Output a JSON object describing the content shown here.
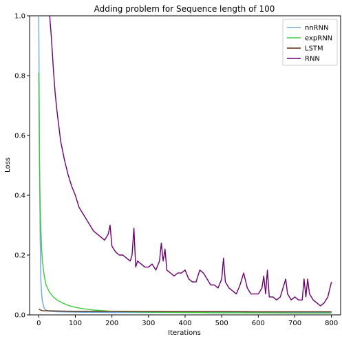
{
  "chart_data": {
    "type": "line",
    "title": "Adding problem for Sequence length of 100",
    "xlabel": "Iterations",
    "ylabel": "Loss",
    "xlim": [
      -25,
      825
    ],
    "ylim": [
      0,
      1.0
    ],
    "xticks": [
      0,
      100,
      200,
      300,
      400,
      500,
      600,
      700,
      800
    ],
    "yticks": [
      0.0,
      0.2,
      0.4,
      0.6,
      0.8,
      1.0
    ],
    "xtick_labels": [
      "0",
      "100",
      "200",
      "300",
      "400",
      "500",
      "600",
      "700",
      "800"
    ],
    "ytick_labels": [
      "0.0",
      "0.2",
      "0.4",
      "0.6",
      "0.8",
      "1.0"
    ],
    "grid": false,
    "legend_position": "top-right",
    "series": [
      {
        "name": "nnRNN",
        "color": "#6fa8dc",
        "x": [
          0,
          1,
          2,
          3,
          4,
          5,
          6,
          8,
          10,
          15,
          20,
          30,
          50,
          100,
          200,
          400,
          600,
          800
        ],
        "y": [
          1.0,
          0.8,
          0.55,
          0.38,
          0.25,
          0.17,
          0.11,
          0.07,
          0.045,
          0.022,
          0.016,
          0.012,
          0.01,
          0.009,
          0.008,
          0.008,
          0.008,
          0.008
        ]
      },
      {
        "name": "expRNN",
        "color": "#3ec73e",
        "x": [
          0,
          2,
          4,
          6,
          8,
          10,
          15,
          20,
          30,
          40,
          50,
          60,
          70,
          80,
          100,
          120,
          150,
          200,
          250,
          300,
          400,
          500,
          600,
          700,
          800
        ],
        "y": [
          0.81,
          0.5,
          0.36,
          0.28,
          0.22,
          0.18,
          0.13,
          0.1,
          0.075,
          0.06,
          0.05,
          0.043,
          0.037,
          0.032,
          0.025,
          0.021,
          0.016,
          0.012,
          0.01,
          0.009,
          0.008,
          0.007,
          0.007,
          0.006,
          0.006
        ]
      },
      {
        "name": "LSTM",
        "color": "#5a2a0a",
        "x": [
          0,
          5,
          10,
          50,
          100,
          200,
          300,
          400,
          500,
          600,
          700,
          800
        ],
        "y": [
          0.02,
          0.016,
          0.014,
          0.013,
          0.012,
          0.012,
          0.011,
          0.011,
          0.011,
          0.01,
          0.01,
          0.01
        ]
      },
      {
        "name": "RNN",
        "color": "#6b0071",
        "x": [
          30,
          35,
          40,
          45,
          50,
          60,
          70,
          80,
          90,
          100,
          110,
          120,
          130,
          140,
          150,
          160,
          170,
          180,
          190,
          195,
          200,
          210,
          220,
          230,
          240,
          250,
          255,
          260,
          265,
          270,
          280,
          290,
          300,
          310,
          320,
          330,
          335,
          340,
          345,
          350,
          360,
          370,
          380,
          390,
          400,
          410,
          420,
          430,
          440,
          450,
          460,
          470,
          480,
          490,
          500,
          505,
          510,
          520,
          530,
          540,
          550,
          560,
          570,
          580,
          590,
          600,
          610,
          615,
          620,
          625,
          630,
          640,
          650,
          660,
          670,
          675,
          680,
          690,
          700,
          710,
          720,
          725,
          730,
          735,
          740,
          750,
          760,
          770,
          780,
          790,
          800
        ],
        "y": [
          1.0,
          0.92,
          0.82,
          0.74,
          0.68,
          0.58,
          0.52,
          0.47,
          0.43,
          0.4,
          0.36,
          0.34,
          0.32,
          0.3,
          0.28,
          0.27,
          0.26,
          0.25,
          0.27,
          0.3,
          0.23,
          0.21,
          0.2,
          0.2,
          0.19,
          0.18,
          0.2,
          0.29,
          0.16,
          0.18,
          0.17,
          0.16,
          0.16,
          0.17,
          0.15,
          0.18,
          0.24,
          0.18,
          0.22,
          0.15,
          0.14,
          0.13,
          0.14,
          0.14,
          0.15,
          0.12,
          0.11,
          0.11,
          0.15,
          0.14,
          0.12,
          0.1,
          0.1,
          0.09,
          0.12,
          0.19,
          0.11,
          0.09,
          0.08,
          0.07,
          0.1,
          0.14,
          0.09,
          0.07,
          0.07,
          0.07,
          0.09,
          0.13,
          0.07,
          0.15,
          0.06,
          0.06,
          0.05,
          0.06,
          0.1,
          0.12,
          0.07,
          0.05,
          0.06,
          0.05,
          0.05,
          0.12,
          0.06,
          0.12,
          0.07,
          0.05,
          0.04,
          0.03,
          0.04,
          0.06,
          0.11
        ]
      }
    ]
  }
}
